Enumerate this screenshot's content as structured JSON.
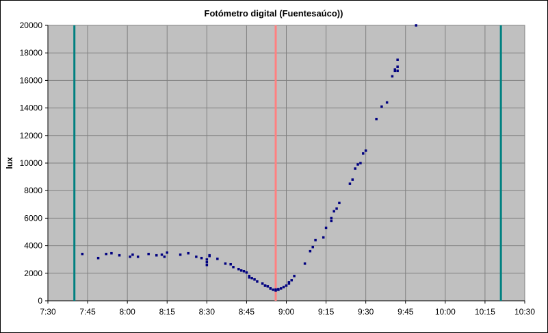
{
  "chart_data": {
    "type": "scatter",
    "title": "Fotómetro digital (Fuentesaúco))",
    "ylabel": "lux",
    "xlabel": "",
    "xlim": [
      "7:30",
      "10:30"
    ],
    "ylim": [
      0,
      20000
    ],
    "x_ticks": [
      "7:30",
      "7:45",
      "8:00",
      "8:15",
      "8:30",
      "8:45",
      "9:00",
      "9:15",
      "9:30",
      "9:45",
      "10:00",
      "10:15",
      "10:30"
    ],
    "y_ticks": [
      "0",
      "2000",
      "4000",
      "6000",
      "8000",
      "10000",
      "12000",
      "14000",
      "16000",
      "18000",
      "20000"
    ],
    "grid": true,
    "legend": "none",
    "colors": {
      "plot_background": "#c0c0c0",
      "points": "#000080",
      "contact_lines": "#008080",
      "maximum_line": "#ff8080",
      "grid": "#808080"
    },
    "vertical_lines": [
      {
        "x": "7:40",
        "color": "#008080"
      },
      {
        "x": "8:56",
        "color": "#ff8080"
      },
      {
        "x": "10:21",
        "color": "#008080"
      }
    ],
    "series": [
      {
        "x": [
          "7:43",
          "7:49",
          "7:52",
          "7:54",
          "7:57",
          "8:01",
          "8:02",
          "8:04",
          "8:08",
          "8:11",
          "8:13",
          "8:14",
          "8:15",
          "8:20",
          "8:23",
          "8:26",
          "8:28",
          "8:30",
          "8:30",
          "8:30",
          "8:31",
          "8:31",
          "8:34",
          "8:37",
          "8:39",
          "8:40",
          "8:42",
          "8:43",
          "8:44",
          "8:45",
          "8:46",
          "8:46",
          "8:47",
          "8:48",
          "8:49",
          "8:51",
          "8:52",
          "8:52",
          "8:53",
          "8:54",
          "8:54",
          "8:55",
          "8:56",
          "8:56",
          "8:57",
          "8:57",
          "8:58",
          "8:59",
          "9:00",
          "9:01",
          "9:01",
          "9:02",
          "9:03",
          "9:07",
          "9:09",
          "9:10",
          "9:11",
          "9:14",
          "9:15",
          "9:17",
          "9:17",
          "9:18",
          "9:19",
          "9:20",
          "9:24",
          "9:25",
          "9:26",
          "9:27",
          "9:28",
          "9:29",
          "9:30",
          "9:34",
          "9:36",
          "9:38",
          "9:40",
          "9:41",
          "9:41",
          "9:42",
          "9:42",
          "9:42",
          "9:49"
        ],
        "y": [
          3400,
          3100,
          3400,
          3450,
          3300,
          3200,
          3350,
          3200,
          3400,
          3300,
          3350,
          3200,
          3500,
          3350,
          3450,
          3200,
          3100,
          3000,
          2600,
          2800,
          3300,
          3250,
          3050,
          2700,
          2650,
          2450,
          2300,
          2200,
          2150,
          2050,
          1800,
          1700,
          1650,
          1550,
          1400,
          1250,
          1100,
          1100,
          1050,
          900,
          900,
          800,
          750,
          820,
          800,
          850,
          900,
          1000,
          1100,
          1250,
          1350,
          1500,
          1800,
          2700,
          3600,
          3900,
          4400,
          4600,
          5300,
          5800,
          6000,
          6500,
          6700,
          7100,
          8500,
          8800,
          9600,
          9900,
          10000,
          10700,
          10900,
          13200,
          14100,
          14400,
          16300,
          16700,
          16800,
          16700,
          17000,
          17500,
          20000
        ]
      }
    ]
  }
}
